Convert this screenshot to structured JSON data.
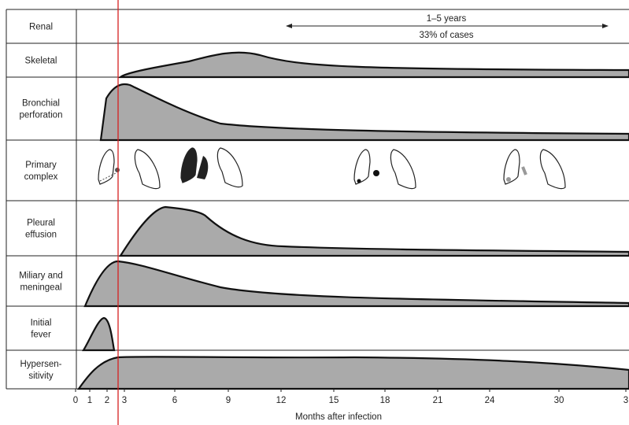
{
  "rows": [
    "Renal",
    "Skeletal",
    "Bronchial perforation",
    "Primary complex",
    "Pleural effusion",
    "Miliary and meningeal",
    "Initial fever",
    "Hypersen- sitivity"
  ],
  "annotation": {
    "duration": "1–5 years",
    "share": "33% of cases"
  },
  "axis": {
    "ticks": [
      "0",
      "1",
      "2",
      "3",
      "6",
      "9",
      "12",
      "15",
      "18",
      "21",
      "24",
      "30",
      "3"
    ],
    "label": "Months after infection"
  }
}
